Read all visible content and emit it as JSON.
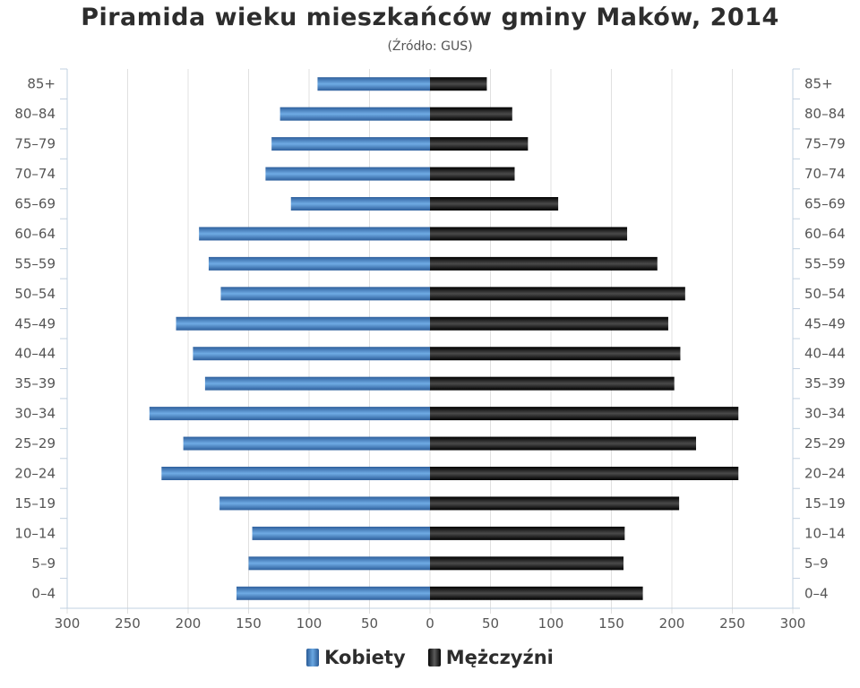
{
  "title": "Piramida wieku mieszkańców gminy Maków, 2014",
  "subtitle": "(Źródło: GUS)",
  "legend": {
    "female_label": "Kobiety",
    "male_label": "Mężczyźni"
  },
  "colors": {
    "female": "#4a86c5",
    "male": "#1a1a1a",
    "grid": "#e0e0e0"
  },
  "chart_data": {
    "type": "bar",
    "orientation": "horizontal",
    "subtype": "population-pyramid",
    "title": "Piramida wieku mieszkańców gminy Maków, 2014",
    "subtitle": "(Źródło: GUS)",
    "categories": [
      "85+",
      "80–84",
      "75–79",
      "70–74",
      "65–69",
      "60–64",
      "55–59",
      "50–54",
      "45–49",
      "40–44",
      "35–39",
      "30–34",
      "25–29",
      "20–24",
      "15–19",
      "10–14",
      "5–9",
      "0–4"
    ],
    "series": [
      {
        "name": "Kobiety",
        "side": "left",
        "values": [
          93,
          124,
          131,
          136,
          115,
          191,
          183,
          173,
          210,
          196,
          186,
          232,
          204,
          222,
          174,
          147,
          150,
          160
        ]
      },
      {
        "name": "Mężczyźni",
        "side": "right",
        "values": [
          47,
          68,
          81,
          70,
          106,
          163,
          188,
          211,
          197,
          207,
          202,
          255,
          220,
          255,
          206,
          161,
          160,
          176
        ]
      }
    ],
    "xlim": [
      -300,
      300
    ],
    "xticks": [
      300,
      250,
      200,
      150,
      100,
      50,
      0,
      50,
      100,
      150,
      200,
      250,
      300
    ],
    "grid": true,
    "legend_position": "bottom"
  }
}
